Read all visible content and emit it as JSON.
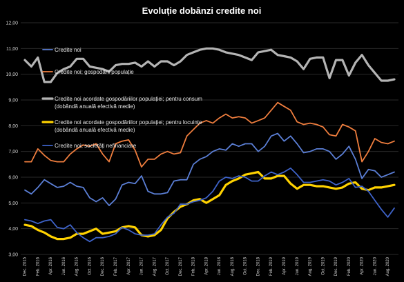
{
  "chart_data": {
    "type": "line",
    "title": "Evoluție dobânzi credite noi",
    "xlabel": "",
    "ylabel": "",
    "ylim": [
      3.0,
      12.0
    ],
    "yticks": [
      "12,00",
      "11,00",
      "10,00",
      "9,00",
      "8,00",
      "7,00",
      "6,00",
      "5,00",
      "4,00",
      "3,00"
    ],
    "grid": true,
    "legend_placement": "inside-left",
    "x": [
      "Dec. 2015",
      "Jan. 2016",
      "Feb. 2016",
      "Mar. 2016",
      "Apr. 2016",
      "May 2016",
      "Jun. 2016",
      "Jul. 2016",
      "Aug. 2016",
      "Sep. 2016",
      "Oct. 2016",
      "Nov. 2016",
      "Dec. 2016",
      "Jan. 2017",
      "Feb. 2017",
      "Mar. 2017",
      "Apr. 2017",
      "May 2017",
      "Jun. 2017",
      "Jul. 2017",
      "Aug. 2017",
      "Sep. 2017",
      "Oct. 2017",
      "Nov. 2017",
      "Dec. 2017",
      "Jan. 2018",
      "Feb. 2018",
      "Mar. 2018",
      "Apr. 2018",
      "May 2018",
      "Jun. 2018",
      "Jul. 2018",
      "Aug. 2018",
      "Sep. 2018",
      "Oct. 2018",
      "Nov. 2018",
      "Dec. 2018",
      "Jan. 2019",
      "Feb. 2019",
      "Mar. 2019",
      "Apr. 2019",
      "May 2019",
      "Jun. 2019",
      "Jul. 2019",
      "Aug. 2019",
      "Sep. 2019",
      "Oct. 2019",
      "Nov. 2019",
      "Dec. 2019",
      "Jan. 2020",
      "Feb. 2020",
      "Mar. 2020",
      "Apr. 2020",
      "May 2020",
      "Jun. 2020",
      "Jul. 2020",
      "Aug. 2020",
      "Sep. 2020"
    ],
    "xtick_labels": [
      "Dec. 2015",
      "Feb. 2016",
      "Apr. 2016",
      "Jun. 2016",
      "Aug. 2016",
      "Oct. 2016",
      "Dec. 2016",
      "Feb. 2017",
      "Apr. 2017",
      "Jun. 2017",
      "Aug. 2017",
      "Oct. 2017",
      "Dec. 2017",
      "Feb. 2018",
      "Apr. 2018",
      "Jun. 2018",
      "Aug. 2018",
      "Oct. 2018",
      "Dec. 2018",
      "Feb. 2019",
      "Apr. 2019",
      "Jun. 2019",
      "Aug. 2019",
      "Oct. 2019",
      "Dec. 2019",
      "Feb. 2020",
      "Apr. 2020",
      "Jun. 2020",
      "Aug. 2020"
    ],
    "series": [
      {
        "name": "Credite noi",
        "color": "#5b7fd6",
        "width": 1.8,
        "values": [
          5.5,
          5.35,
          5.6,
          5.9,
          5.75,
          5.6,
          5.65,
          5.8,
          5.65,
          5.6,
          5.2,
          5.05,
          5.2,
          4.9,
          5.15,
          5.7,
          5.8,
          5.75,
          6.05,
          5.45,
          5.35,
          5.35,
          5.4,
          5.85,
          5.9,
          5.9,
          6.5,
          6.7,
          6.8,
          7.0,
          7.1,
          7.05,
          7.3,
          7.2,
          7.3,
          7.3,
          7.0,
          7.2,
          7.6,
          7.7,
          7.4,
          7.6,
          7.3,
          6.95,
          7.0,
          7.1,
          7.1,
          7.0,
          6.7,
          6.9,
          7.2,
          6.7,
          5.95,
          6.3,
          6.25,
          6.0,
          6.1,
          6.2
        ]
      },
      {
        "name": "Credite noi; gospodării populație",
        "color": "#f07e3e",
        "width": 1.8,
        "values": [
          6.6,
          6.6,
          7.1,
          6.85,
          6.65,
          6.6,
          6.6,
          6.9,
          7.1,
          7.25,
          7.2,
          7.3,
          6.9,
          6.6,
          7.3,
          7.4,
          7.45,
          7.05,
          6.4,
          6.7,
          6.7,
          6.9,
          7.0,
          6.9,
          6.95,
          7.6,
          7.85,
          8.1,
          8.2,
          8.1,
          8.3,
          8.45,
          8.3,
          8.35,
          8.3,
          8.1,
          8.2,
          8.3,
          8.6,
          8.9,
          8.75,
          8.6,
          8.15,
          8.05,
          8.1,
          8.05,
          7.95,
          7.65,
          7.6,
          8.05,
          7.95,
          7.8,
          6.6,
          7.0,
          7.5,
          7.35,
          7.3,
          7.4
        ]
      },
      {
        "name": "Credite noi acordate gospodăriilor populației; pentru consum (dobândă anuală efectivă medie)",
        "color": "#b4b4b4",
        "width": 3.2,
        "values": [
          10.55,
          10.3,
          10.65,
          9.7,
          9.7,
          10.05,
          10.2,
          10.3,
          10.6,
          10.6,
          10.3,
          10.25,
          10.2,
          10.1,
          10.35,
          10.4,
          10.4,
          10.45,
          10.3,
          10.5,
          10.3,
          10.5,
          10.5,
          10.35,
          10.5,
          10.75,
          10.85,
          10.95,
          11.0,
          11.0,
          10.95,
          10.85,
          10.8,
          10.75,
          10.65,
          10.55,
          10.85,
          10.9,
          10.95,
          10.75,
          10.7,
          10.65,
          10.5,
          10.2,
          10.6,
          10.65,
          10.65,
          9.85,
          10.55,
          10.55,
          9.95,
          10.45,
          10.75,
          10.35,
          10.05,
          9.75,
          9.75,
          9.8
        ]
      },
      {
        "name": "Credite noi acordate gospodăriilor populației; pentru locuințe (dobândă anuală efectivă medie)",
        "color": "#ffd200",
        "width": 3.2,
        "values": [
          4.15,
          4.1,
          3.95,
          3.85,
          3.7,
          3.6,
          3.6,
          3.65,
          3.8,
          3.8,
          3.9,
          4.0,
          3.8,
          3.85,
          3.9,
          4.05,
          4.1,
          4.05,
          3.75,
          3.7,
          3.75,
          3.95,
          4.4,
          4.65,
          4.85,
          4.95,
          5.1,
          5.15,
          5.0,
          5.15,
          5.3,
          5.7,
          5.85,
          5.95,
          6.1,
          6.15,
          6.2,
          5.95,
          5.95,
          6.05,
          6.05,
          5.75,
          5.55,
          5.7,
          5.7,
          5.65,
          5.65,
          5.6,
          5.55,
          5.6,
          5.75,
          5.8,
          5.55,
          5.5,
          5.6,
          5.6,
          5.65,
          5.7
        ]
      },
      {
        "name": "Credite noi; societăți nefinanciare",
        "color": "#3e63c9",
        "width": 1.8,
        "values": [
          4.35,
          4.3,
          4.2,
          4.3,
          4.35,
          4.05,
          4.0,
          4.15,
          3.85,
          3.65,
          3.5,
          3.65,
          3.65,
          3.7,
          3.8,
          4.05,
          3.95,
          3.8,
          3.75,
          3.75,
          3.8,
          4.15,
          4.45,
          4.6,
          4.95,
          4.95,
          5.05,
          5.1,
          5.2,
          5.45,
          5.85,
          6.0,
          5.95,
          6.05,
          6.0,
          5.85,
          5.85,
          6.05,
          6.2,
          6.1,
          6.2,
          6.35,
          6.1,
          5.8,
          5.8,
          5.85,
          5.9,
          5.85,
          5.7,
          5.8,
          5.95,
          5.6,
          5.65,
          5.45,
          5.1,
          4.75,
          4.45,
          4.8
        ]
      }
    ]
  }
}
